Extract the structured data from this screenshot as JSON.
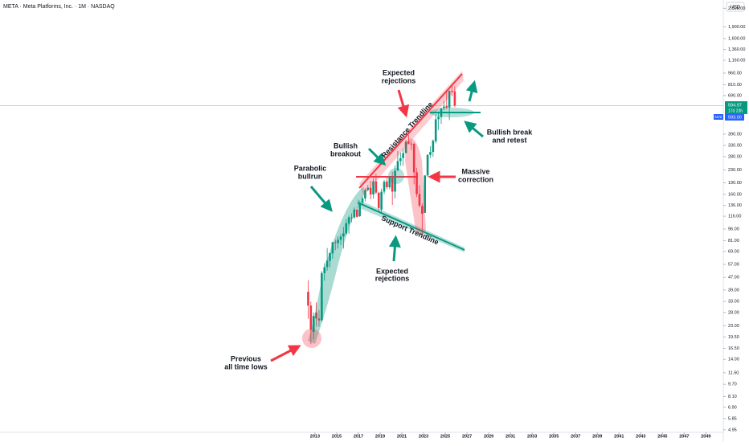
{
  "header": {
    "title": "META · Meta Platforms, Inc. · 1M · NASDAQ",
    "currency": "USD"
  },
  "price_tags": {
    "last": "594.97",
    "countdown": "17d 23h",
    "level": "593.00",
    "tag": "NVZ"
  },
  "annotations": [
    {
      "lines": [
        "Expected",
        "rejections"
      ]
    },
    {
      "lines": [
        "Resistance Trendline"
      ]
    },
    {
      "lines": [
        "Bullish",
        "breakout"
      ]
    },
    {
      "lines": [
        "Parabolic",
        "bullrun"
      ]
    },
    {
      "lines": [
        "Massive",
        "correction"
      ]
    },
    {
      "lines": [
        "Bullish break",
        "and retest"
      ]
    },
    {
      "lines": [
        "Support Trendline"
      ]
    },
    {
      "lines": [
        "Expected",
        "rejections"
      ]
    },
    {
      "lines": [
        "Previous",
        "all time lows"
      ]
    }
  ],
  "chart_data": {
    "type": "candlestick",
    "log_scale": true,
    "up_color": "#089981",
    "down_color": "#f23645",
    "xlim": [
      1984,
      2050.6
    ],
    "xticks": [
      2013,
      2015,
      2017,
      2019,
      2021,
      2023,
      2025,
      2027,
      2029,
      2031,
      2033,
      2035,
      2037,
      2039,
      2041,
      2043,
      2045,
      2047,
      2049
    ],
    "ylim": [
      4.77,
      2827
    ],
    "yticks": [
      {
        "value": 2500,
        "label": "2,500.00"
      },
      {
        "value": 1900,
        "label": "1,900.00"
      },
      {
        "value": 1600,
        "label": "1,600.00"
      },
      {
        "value": 1360,
        "label": "1,360.00"
      },
      {
        "value": 1160,
        "label": "1,160.00"
      },
      {
        "value": 960,
        "label": "960.00"
      },
      {
        "value": 810,
        "label": "810.00"
      },
      {
        "value": 690,
        "label": "690.00"
      },
      {
        "value": 390,
        "label": "390.00"
      },
      {
        "value": 330,
        "label": "330.00"
      },
      {
        "value": 280,
        "label": "280.00"
      },
      {
        "value": 230,
        "label": "230.00"
      },
      {
        "value": 190,
        "label": "190.00"
      },
      {
        "value": 160,
        "label": "160.00"
      },
      {
        "value": 136,
        "label": "136.00"
      },
      {
        "value": 116,
        "label": "116.00"
      },
      {
        "value": 96,
        "label": "96.00"
      },
      {
        "value": 81,
        "label": "81.00"
      },
      {
        "value": 69,
        "label": "69.00"
      },
      {
        "value": 57,
        "label": "57.00"
      },
      {
        "value": 47,
        "label": "47.00"
      },
      {
        "value": 39,
        "label": "39.00"
      },
      {
        "value": 33,
        "label": "33.00"
      },
      {
        "value": 28,
        "label": "28.00"
      },
      {
        "value": 23,
        "label": "23.00"
      },
      {
        "value": 19.5,
        "label": "19.50"
      },
      {
        "value": 16.5,
        "label": "16.50"
      },
      {
        "value": 14,
        "label": "14.00"
      },
      {
        "value": 11.5,
        "label": "11.50"
      },
      {
        "value": 9.7,
        "label": "9.70"
      },
      {
        "value": 8.1,
        "label": "8.10"
      },
      {
        "value": 6.9,
        "label": "6.90"
      },
      {
        "value": 5.85,
        "label": "5.85"
      },
      {
        "value": 4.95,
        "label": "4.95"
      }
    ],
    "x": [
      2012.375,
      2012.625,
      2012.875,
      2013.125,
      2013.375,
      2013.625,
      2013.875,
      2014.125,
      2014.375,
      2014.625,
      2014.875,
      2015.125,
      2015.375,
      2015.625,
      2015.875,
      2016.125,
      2016.375,
      2016.625,
      2016.875,
      2017.125,
      2017.375,
      2017.625,
      2017.875,
      2018.125,
      2018.375,
      2018.625,
      2018.875,
      2019.125,
      2019.375,
      2019.625,
      2019.875,
      2020.125,
      2020.375,
      2020.625,
      2020.875,
      2021.125,
      2021.375,
      2021.625,
      2021.875,
      2022.125,
      2022.375,
      2022.625,
      2022.875,
      2023.125,
      2023.375,
      2023.625,
      2023.875,
      2024.125,
      2024.375,
      2024.625,
      2024.875,
      2025.125,
      2025.375,
      2025.625,
      2025.875
    ],
    "open": [
      38,
      31,
      21,
      28,
      25.6,
      25,
      50,
      54.8,
      60,
      67,
      79,
      78,
      82,
      86,
      90,
      104,
      114,
      114,
      128,
      116,
      142,
      151,
      171,
      177,
      160,
      194,
      164,
      128,
      167,
      194,
      178,
      206,
      167,
      228,
      262,
      274,
      295,
      348,
      339,
      338,
      222,
      161,
      135,
      122,
      212,
      287,
      300,
      351,
      486,
      502,
      572,
      589,
      577,
      738,
      734
    ],
    "high": [
      45,
      32.9,
      28,
      32.5,
      29,
      51.6,
      58,
      72.6,
      68,
      79.6,
      82.2,
      86,
      89,
      99,
      110.6,
      117,
      121,
      131.9,
      133.5,
      143,
      156.5,
      175.5,
      184.2,
      195.3,
      203.5,
      218.6,
      165.9,
      174.3,
      198.5,
      208.7,
      208.9,
      224.2,
      245.2,
      304.7,
      297,
      315,
      358,
      384.3,
      352.7,
      343,
      236.9,
      183,
      140,
      212,
      289.8,
      326.2,
      361,
      523.6,
      531.5,
      544.2,
      638.4,
      740.9,
      747.9,
      796.3,
      790.8
    ],
    "low": [
      25.5,
      17.55,
      18.8,
      22.7,
      22.7,
      24.5,
      44.8,
      51.9,
      54.6,
      62,
      70.3,
      72,
      76,
      72,
      88,
      89.4,
      106,
      112,
      113.6,
      115,
      138,
      144.6,
      168,
      149,
      150.5,
      160.8,
      123,
      123,
      160.8,
      173,
      173,
      137.1,
      150.8,
      226,
      244,
      244.6,
      294,
      336,
      308,
      185.8,
      154.3,
      132.6,
      88.1,
      122,
      207,
      274,
      279,
      340,
      414.5,
      453,
      555,
      565,
      479.8,
      682,
      581
    ],
    "close": [
      31,
      21.7,
      26.6,
      25.6,
      24.9,
      50.2,
      54.6,
      60.2,
      67.3,
      79,
      78,
      82,
      85.8,
      90,
      104.7,
      114,
      114,
      128,
      115,
      142,
      151,
      171,
      176.5,
      160,
      194,
      164.5,
      131,
      166.7,
      193,
      178,
      205,
      166.8,
      227,
      262,
      273,
      294.5,
      347.7,
      339,
      336,
      222,
      161,
      135.7,
      120.3,
      212,
      287,
      300,
      354,
      485.6,
      504.2,
      572.4,
      585.5,
      576.4,
      738,
      734,
      594.97
    ]
  }
}
